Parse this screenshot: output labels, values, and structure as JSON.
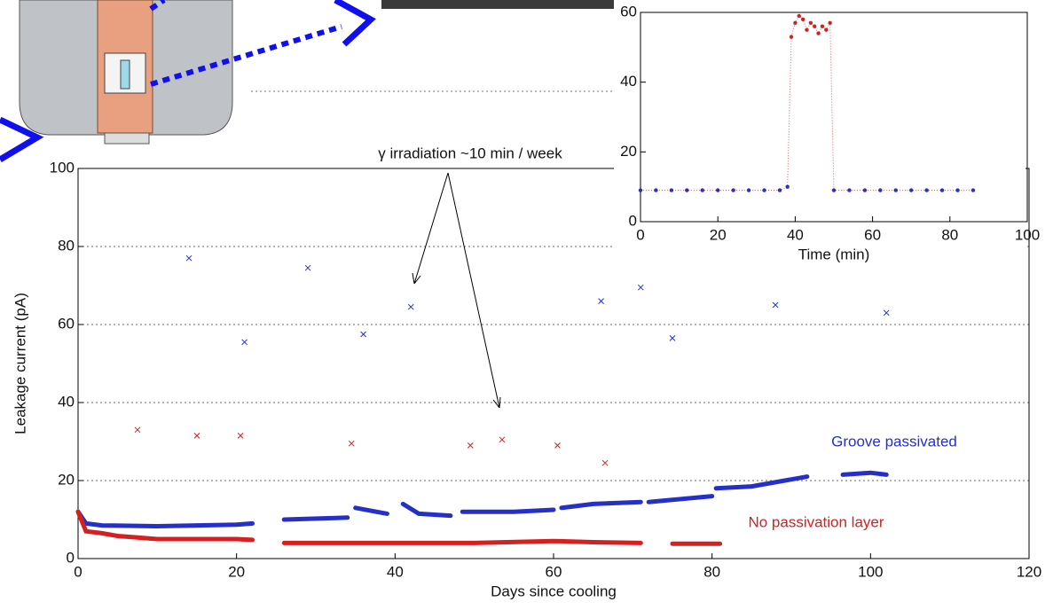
{
  "chart_data": [
    {
      "type": "scatter",
      "xlabel": "Days since cooling",
      "ylabel": "Leakage current (pA)",
      "annotation": "γ irradiation ~10 min / week",
      "xlim": [
        0,
        120
      ],
      "ylim": [
        0,
        100
      ],
      "xticks": [
        0,
        20,
        40,
        60,
        80,
        100,
        120
      ],
      "yticks": [
        0,
        20,
        40,
        60,
        80,
        100
      ],
      "grid": true,
      "series": [
        {
          "name": "Groove passivated",
          "color": "#2430c8",
          "style": "line",
          "x": [
            0,
            1,
            3,
            10,
            20,
            22,
            null,
            26,
            34,
            null,
            35,
            39,
            null,
            41,
            43,
            47,
            null,
            48.5,
            55,
            60,
            null,
            61,
            65,
            71,
            null,
            72,
            80,
            null,
            80.5,
            85,
            92,
            null,
            96.5,
            100,
            102
          ],
          "values": [
            12,
            9,
            8.5,
            8.3,
            8.7,
            9,
            null,
            10,
            10.5,
            null,
            13,
            11.5,
            null,
            14,
            11.5,
            11,
            null,
            12,
            12,
            12.5,
            null,
            13,
            14,
            14.5,
            null,
            14.5,
            16,
            null,
            18,
            18.5,
            21,
            null,
            21.5,
            22,
            21.5
          ]
        },
        {
          "name": "No passivation layer",
          "color": "#d42020",
          "style": "line",
          "x": [
            0,
            1,
            3,
            5,
            10,
            20,
            22,
            null,
            26,
            35,
            41,
            45,
            50,
            60,
            65,
            71,
            null,
            75,
            81
          ],
          "values": [
            12,
            7,
            6.5,
            5.8,
            5,
            5,
            4.8,
            null,
            4,
            4,
            4,
            4,
            4,
            4.5,
            4.2,
            4,
            null,
            3.8,
            3.8
          ]
        },
        {
          "color": "#2430c8",
          "style": "cross",
          "x": [
            14,
            21,
            29,
            36,
            42,
            66,
            71,
            75,
            88,
            102
          ],
          "values": [
            77,
            55.5,
            74.5,
            57.5,
            64.5,
            66,
            69.5,
            56.5,
            65,
            63
          ]
        },
        {
          "color": "#d42020",
          "style": "cross",
          "x": [
            7.5,
            15,
            20.5,
            34.5,
            49.5,
            53.5,
            60.5,
            66.5
          ],
          "values": [
            33,
            31.5,
            31.5,
            29.5,
            29,
            30.5,
            29,
            24.5
          ]
        }
      ]
    },
    {
      "type": "scatter",
      "xlabel": "Time (min)",
      "connect": true,
      "xlim": [
        0,
        100
      ],
      "ylim": [
        0,
        60
      ],
      "xticks": [
        0,
        20,
        40,
        60,
        80,
        100
      ],
      "yticks": [
        0,
        20,
        40,
        60
      ],
      "grid": false,
      "series": [
        {
          "color": "#2430c8",
          "style": "dot",
          "x": [
            0,
            4,
            8,
            12,
            16,
            20,
            24,
            28,
            32,
            36,
            38
          ],
          "values": [
            9,
            9,
            9,
            9,
            9,
            9,
            9,
            9,
            9,
            9,
            10
          ]
        },
        {
          "color": "#d42020",
          "style": "dot",
          "x": [
            39,
            40,
            41,
            42,
            43,
            44,
            45,
            46,
            47,
            48,
            49
          ],
          "values": [
            53,
            57,
            59,
            58,
            55,
            57,
            56,
            54,
            56,
            55,
            57
          ]
        },
        {
          "color": "#2430c8",
          "style": "dot",
          "x": [
            50,
            54,
            58,
            62,
            66,
            70,
            74,
            78,
            82,
            86
          ],
          "values": [
            9,
            9,
            9,
            9,
            9,
            9,
            9,
            9,
            9,
            9
          ]
        }
      ]
    }
  ]
}
